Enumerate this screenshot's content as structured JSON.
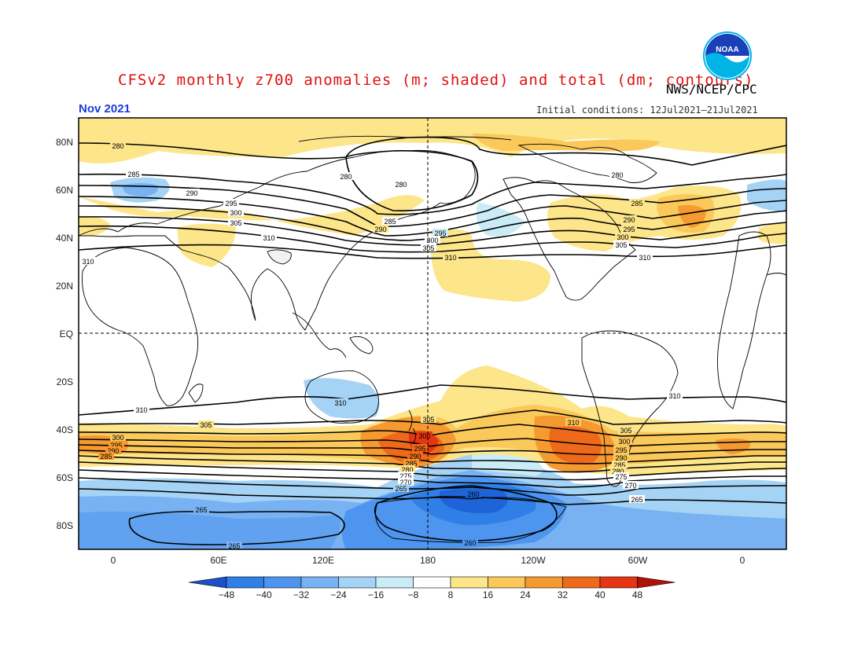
{
  "header": {
    "title": "CFSv2 monthly z700 anomalies (m; shaded) and total (dm; contours)",
    "agency": "NWS/NCEP/CPC",
    "period": "Nov 2021",
    "initial_conditions": "Initial conditions: 12Jul2021–21Jul2021"
  },
  "logo": {
    "icon": "noaa-logo-icon",
    "text": "NOAA"
  },
  "axes": {
    "lat_labels": [
      "80N",
      "60N",
      "40N",
      "20N",
      "EQ",
      "20S",
      "40S",
      "60S",
      "80S"
    ],
    "lon_labels": [
      "0",
      "60E",
      "120E",
      "180",
      "120W",
      "60W",
      "0"
    ]
  },
  "contour_labels": {
    "nh": [
      "280",
      "285",
      "290",
      "295",
      "300",
      "305",
      "310"
    ],
    "sh": [
      "310",
      "305",
      "300",
      "295",
      "290",
      "285",
      "280",
      "275",
      "270",
      "265",
      "260"
    ]
  },
  "colorbar": {
    "ticks": [
      "−48",
      "−40",
      "−32",
      "−24",
      "−16",
      "−8",
      "8",
      "16",
      "24",
      "32",
      "40",
      "48"
    ],
    "colors": [
      "#1e64d8",
      "#2f7fe6",
      "#4d95ee",
      "#78b2f2",
      "#a5d3f6",
      "#c9ecf7",
      "#ffffff",
      "#fde58a",
      "#fbc85a",
      "#f59a30",
      "#ee6a1a",
      "#e53512",
      "#b01008"
    ],
    "left_arrow_color": "#1a50c8",
    "right_arrow_color": "#b01008"
  }
}
